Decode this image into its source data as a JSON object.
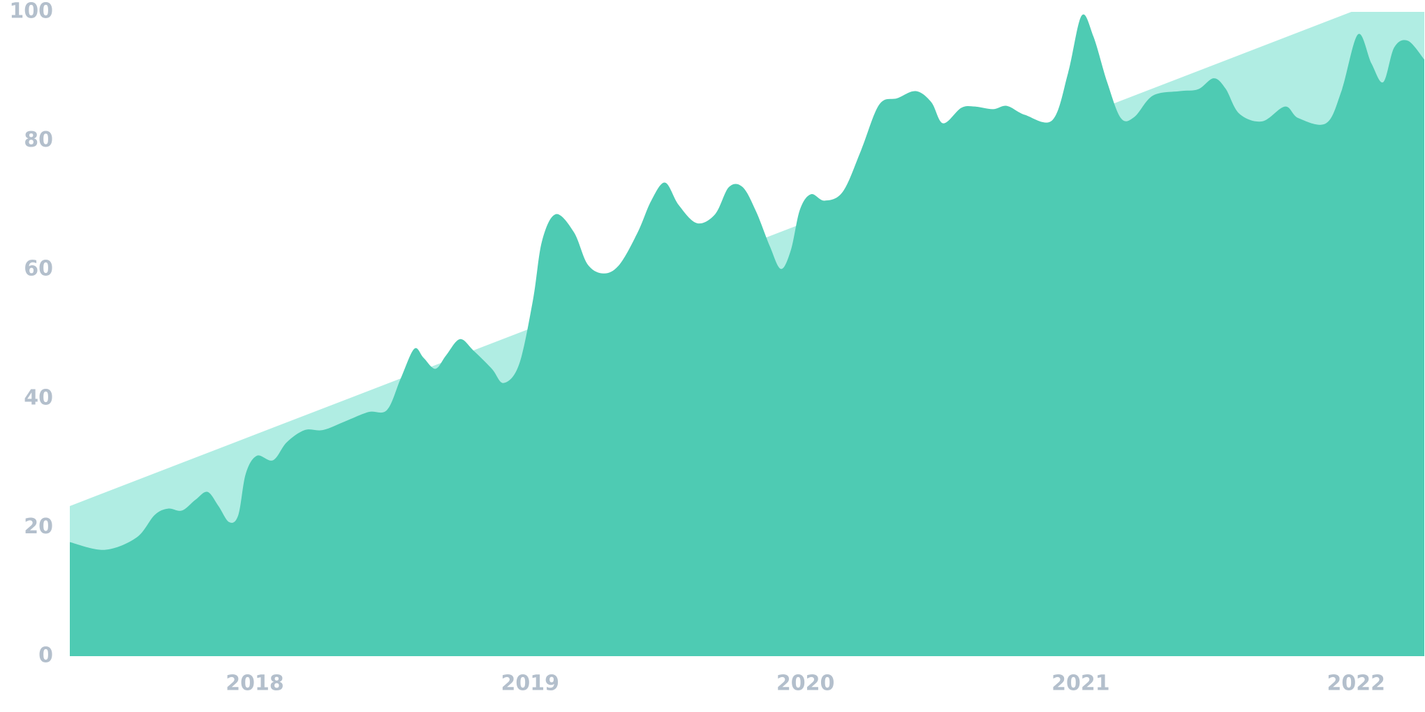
{
  "chart_data": {
    "type": "area",
    "xlim": [
      2017.328,
      2022.248
    ],
    "xticks": [
      2018,
      2019,
      2020,
      2021,
      2022
    ],
    "ylim": [
      0,
      100
    ],
    "yticks": [
      0,
      20,
      40,
      60,
      80,
      100
    ],
    "grid": false,
    "series": [
      {
        "color": "#b0ede3",
        "x": [
          2017.328,
          2021.983,
          2022.248
        ],
        "values": [
          23.3,
          100,
          100
        ]
      },
      {
        "color": "#4ecbb3",
        "x": [
          2017.328,
          2017.454,
          2017.57,
          2017.636,
          2017.685,
          2017.735,
          2017.785,
          2017.828,
          2017.868,
          2017.907,
          2017.94,
          2017.967,
          2018.007,
          2018.066,
          2018.116,
          2018.182,
          2018.248,
          2018.331,
          2018.414,
          2018.48,
          2018.53,
          2018.579,
          2018.613,
          2018.656,
          2018.695,
          2018.745,
          2018.795,
          2018.861,
          2018.904,
          2018.96,
          2019.01,
          2019.043,
          2019.093,
          2019.159,
          2019.209,
          2019.268,
          2019.325,
          2019.391,
          2019.44,
          2019.49,
          2019.54,
          2019.606,
          2019.672,
          2019.722,
          2019.772,
          2019.821,
          2019.871,
          2019.911,
          2019.947,
          2019.98,
          2020.02,
          2020.07,
          2020.136,
          2020.202,
          2020.268,
          2020.334,
          2020.401,
          2020.457,
          2020.5,
          2020.566,
          2020.616,
          2020.682,
          2020.732,
          2020.798,
          2020.897,
          2020.954,
          2021.003,
          2021.046,
          2021.096,
          2021.146,
          2021.195,
          2021.262,
          2021.361,
          2021.427,
          2021.483,
          2021.526,
          2021.576,
          2021.659,
          2021.742,
          2021.791,
          2021.891,
          2021.947,
          2022.007,
          2022.056,
          2022.099,
          2022.139,
          2022.189,
          2022.248
        ],
        "values": [
          17.7,
          16.5,
          18.4,
          21.9,
          22.9,
          22.6,
          24.3,
          25.5,
          23.3,
          20.8,
          21.9,
          28.3,
          31.1,
          30.4,
          33.2,
          35.1,
          35.1,
          36.5,
          37.9,
          38.2,
          43.1,
          47.7,
          46.3,
          44.6,
          46.7,
          49.2,
          47.4,
          44.6,
          42.4,
          45.3,
          55.2,
          64.4,
          68.6,
          65.8,
          60.8,
          59.4,
          60.8,
          65.8,
          70.7,
          73.5,
          70.0,
          67.2,
          68.6,
          72.8,
          72.8,
          69.0,
          63.6,
          60.1,
          63.0,
          69.3,
          71.7,
          70.7,
          72.1,
          78.5,
          85.6,
          86.6,
          87.7,
          86.0,
          82.7,
          85.1,
          85.3,
          84.9,
          85.4,
          84.0,
          83.2,
          90.5,
          99.4,
          96.2,
          89.1,
          83.5,
          83.7,
          87.0,
          87.7,
          88.0,
          89.7,
          88.1,
          84.2,
          83.0,
          85.3,
          83.5,
          82.7,
          87.7,
          96.5,
          92.0,
          89.1,
          94.5,
          95.5,
          92.6
        ]
      }
    ]
  }
}
